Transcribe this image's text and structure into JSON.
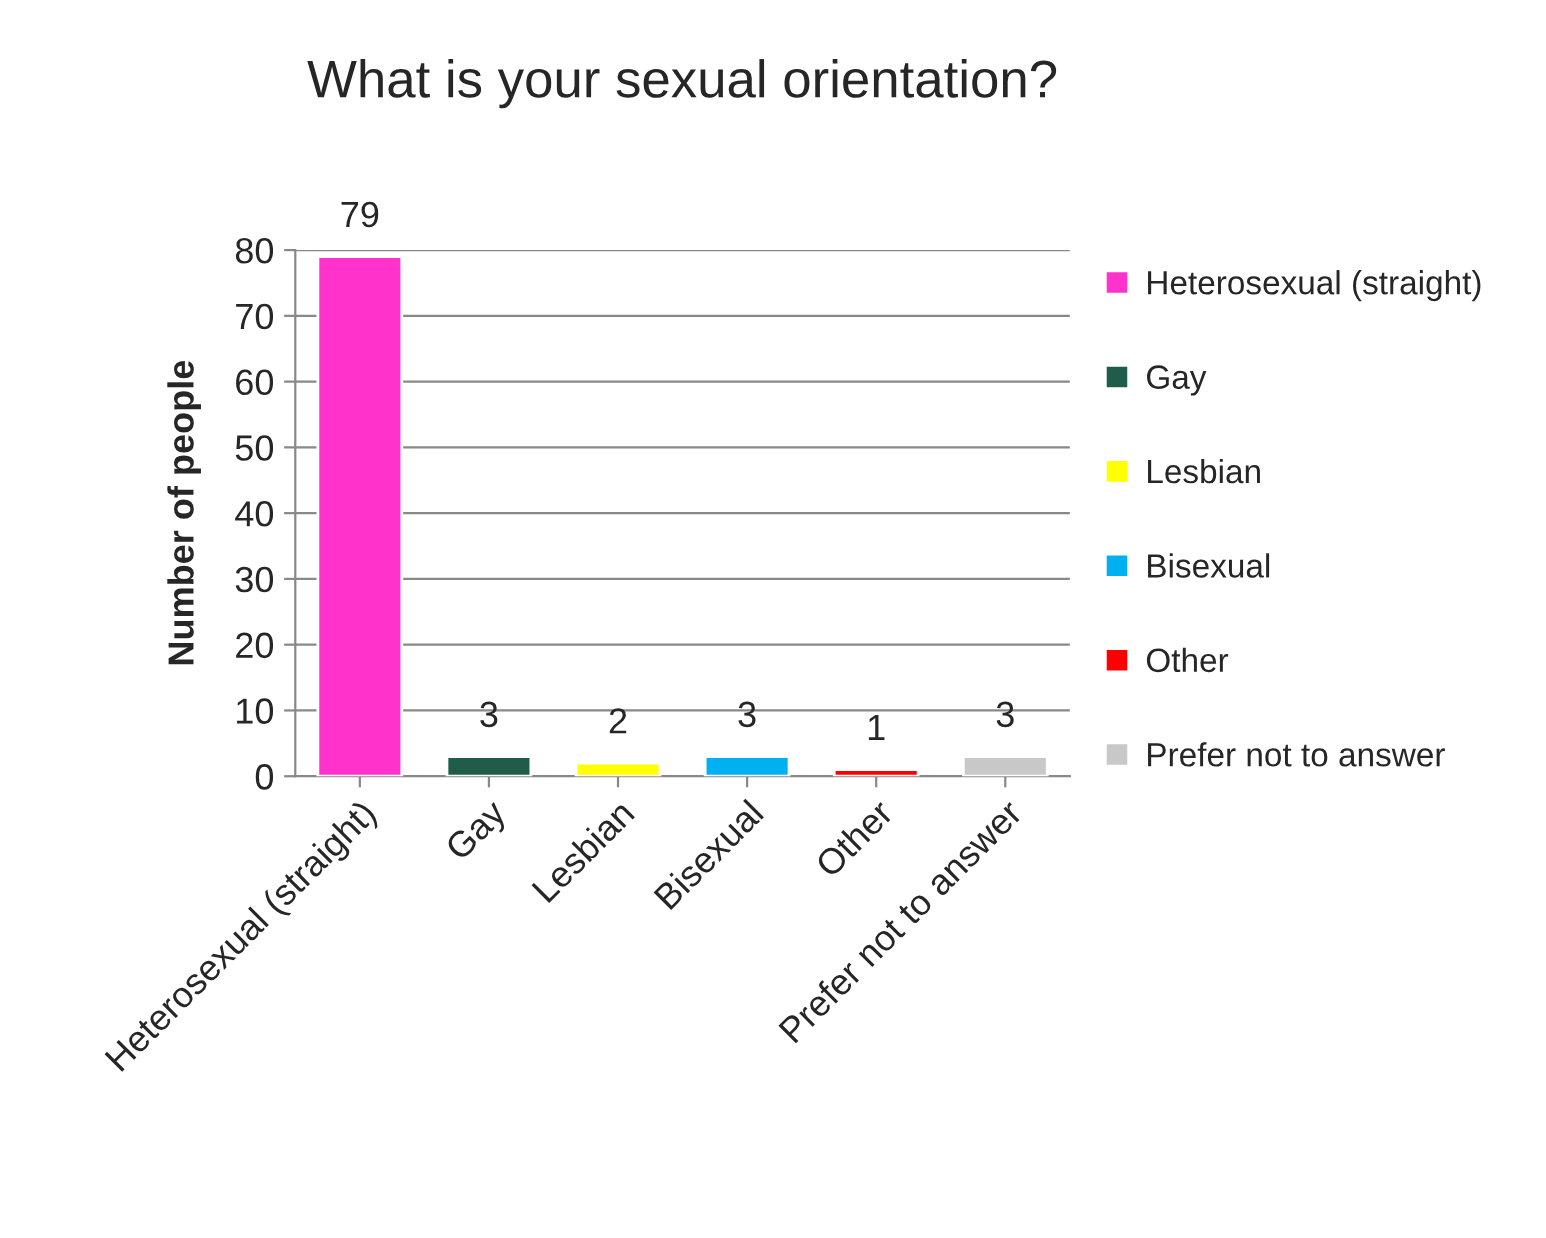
{
  "chart_data": {
    "type": "bar",
    "title": "What is your sexual orientation?",
    "ylabel": "Number of people",
    "stacked": true,
    "categories": [
      "Heterosexual (straight)",
      "Gay",
      "Lesbian",
      "Bisexual",
      "Other",
      "Prefer not to answer"
    ],
    "series": [
      {
        "name": "Heterosexual (straight)",
        "color": "#ff33cc",
        "values": [
          79,
          null,
          null,
          null,
          null,
          null
        ]
      },
      {
        "name": "Gay",
        "color": "#1f5c4a",
        "values": [
          null,
          3,
          null,
          null,
          null,
          null
        ]
      },
      {
        "name": "Lesbian",
        "color": "#ffff00",
        "values": [
          null,
          null,
          2,
          null,
          null,
          null
        ]
      },
      {
        "name": "Bisexual",
        "color": "#00b0f0",
        "values": [
          null,
          null,
          null,
          3,
          null,
          null
        ]
      },
      {
        "name": "Other",
        "color": "#ff0000",
        "values": [
          null,
          null,
          null,
          null,
          1,
          null
        ]
      },
      {
        "name": "Prefer not to answer",
        "color": "#c8c8c8",
        "values": [
          null,
          null,
          null,
          null,
          null,
          3
        ]
      }
    ],
    "ylim": [
      0,
      80
    ],
    "yticks": [
      0,
      10,
      20,
      30,
      40,
      50,
      60,
      70,
      80
    ],
    "grid": "y",
    "legend": "right",
    "data_labels": true
  }
}
